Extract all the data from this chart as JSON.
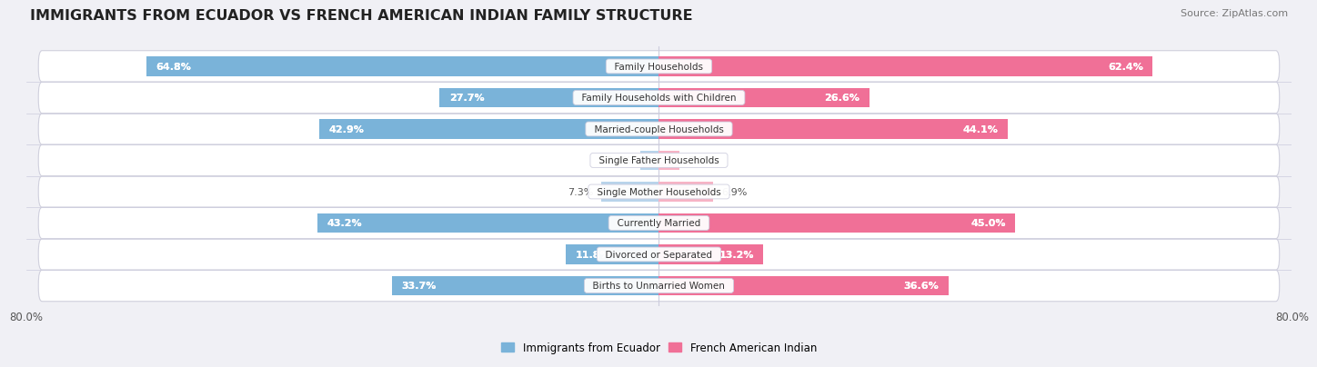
{
  "title": "IMMIGRANTS FROM ECUADOR VS FRENCH AMERICAN INDIAN FAMILY STRUCTURE",
  "source": "Source: ZipAtlas.com",
  "categories": [
    "Family Households",
    "Family Households with Children",
    "Married-couple Households",
    "Single Father Households",
    "Single Mother Households",
    "Currently Married",
    "Divorced or Separated",
    "Births to Unmarried Women"
  ],
  "ecuador_values": [
    64.8,
    27.7,
    42.9,
    2.4,
    7.3,
    43.2,
    11.8,
    33.7
  ],
  "french_values": [
    62.4,
    26.6,
    44.1,
    2.6,
    6.9,
    45.0,
    13.2,
    36.6
  ],
  "ecuador_color": "#7ab3d9",
  "ecuador_color_light": "#b8d4eb",
  "french_color": "#f07097",
  "french_color_light": "#f7b3c5",
  "ecuador_label": "Immigrants from Ecuador",
  "french_label": "French American Indian",
  "axis_max": 80.0,
  "axis_label": "80.0%",
  "background_color": "#f0f0f5",
  "bar_height": 0.62,
  "title_fontsize": 11.5,
  "value_fontsize": 8,
  "category_fontsize": 7.5,
  "source_fontsize": 8
}
